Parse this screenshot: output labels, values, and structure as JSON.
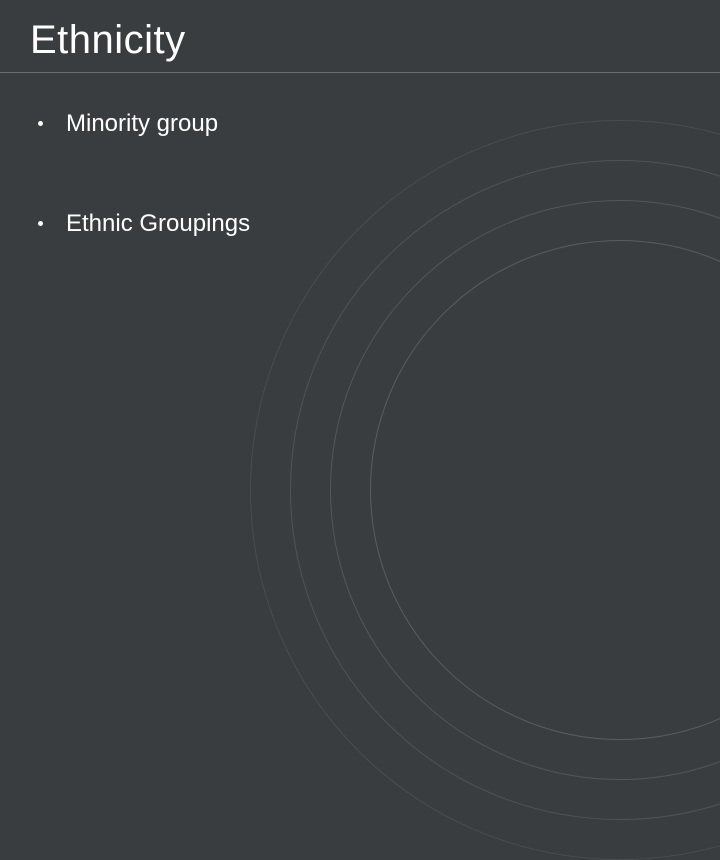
{
  "slide": {
    "title": "Ethnicity",
    "bullets": [
      "Minority group",
      "Ethnic Groupings"
    ],
    "background_color": "#3a3d40",
    "text_color": "#ffffff",
    "title_fontsize": 40,
    "bullet_fontsize": 24,
    "underline_color": "#6a6d70",
    "decoration_arc_colors": [
      "#5a5d60",
      "#555659",
      "#505255",
      "#4a4c4f"
    ]
  }
}
